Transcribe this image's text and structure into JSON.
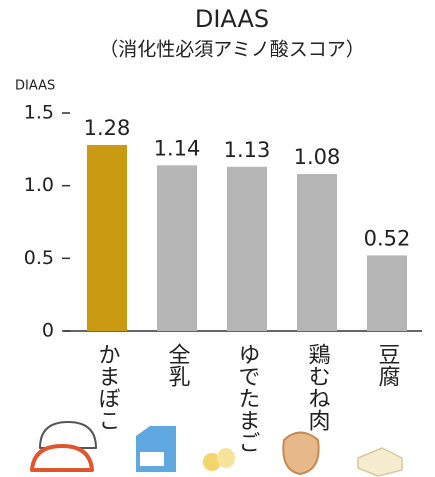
{
  "chart_data": {
    "type": "bar",
    "title": "DIAAS",
    "subtitle": "（消化性必須アミノ酸スコア）",
    "y_label": "DIAAS",
    "categories": [
      "かまぼこ",
      "全乳",
      "ゆでたまご",
      "鶏むね肉",
      "豆腐"
    ],
    "values": [
      1.28,
      1.14,
      1.13,
      1.08,
      0.52
    ],
    "colors": [
      "#c99a12",
      "#b5b5b5",
      "#b5b5b5",
      "#b5b5b5",
      "#b5b5b5"
    ],
    "ylim": [
      0,
      1.5
    ],
    "yticks": [
      0,
      0.5,
      {
        "value": 1,
        "label": "1.0"
      },
      1.5
    ],
    "grid": false
  }
}
